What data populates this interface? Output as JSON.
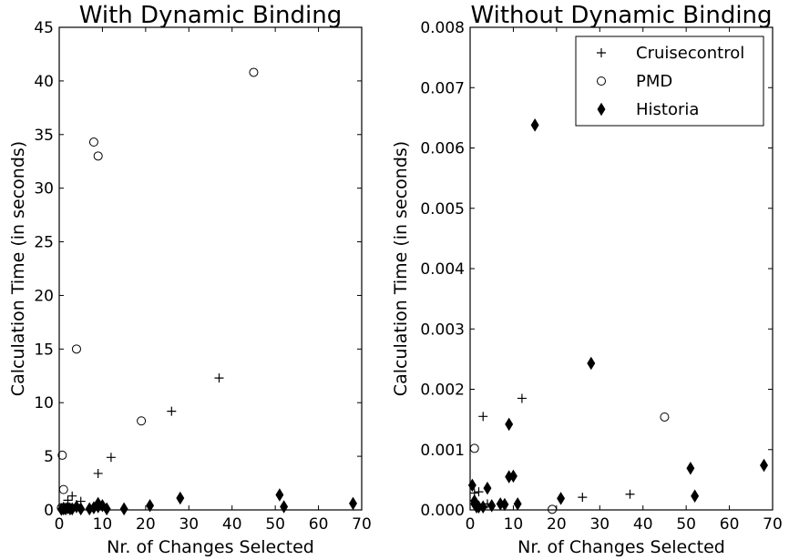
{
  "chart_data": [
    {
      "type": "scatter",
      "title": "With Dynamic Binding",
      "xlabel": "Nr. of Changes Selected",
      "ylabel": "Calculation Time (in seconds)",
      "xlim": [
        0,
        70
      ],
      "ylim": [
        0,
        45
      ],
      "xticks": [
        0,
        10,
        20,
        30,
        40,
        50,
        60,
        70
      ],
      "yticks": [
        0,
        5,
        10,
        15,
        20,
        25,
        30,
        35,
        40,
        45
      ],
      "xtick_labels": [
        "0",
        "10",
        "20",
        "30",
        "40",
        "50",
        "60",
        "70"
      ],
      "ytick_labels": [
        "0",
        "5",
        "10",
        "15",
        "20",
        "25",
        "30",
        "35",
        "40",
        "45"
      ],
      "grid": false,
      "series": [
        {
          "name": "Cruisecontrol",
          "marker": "plus",
          "x": [
            1,
            2,
            3,
            4,
            5,
            9,
            12,
            26,
            37
          ],
          "y": [
            0.3,
            0.9,
            1.3,
            0.5,
            0.8,
            3.4,
            4.9,
            9.2,
            12.3
          ]
        },
        {
          "name": "PMD",
          "marker": "circle",
          "x": [
            0.5,
            0.7,
            1,
            4,
            8,
            9,
            19,
            45
          ],
          "y": [
            0.2,
            5.1,
            1.9,
            15.0,
            34.3,
            33.0,
            8.3,
            40.8
          ]
        },
        {
          "name": "Historia",
          "marker": "diamond",
          "x": [
            0.5,
            1,
            1,
            1.5,
            2,
            2.5,
            3,
            4,
            5,
            7,
            8,
            9,
            9,
            10,
            11,
            15,
            21,
            28,
            51,
            52,
            68
          ],
          "y": [
            0.05,
            0.1,
            0.15,
            0.1,
            0.2,
            0.1,
            0.1,
            0.3,
            0.1,
            0.1,
            0.2,
            0.3,
            0.6,
            0.4,
            0.1,
            0.1,
            0.4,
            1.1,
            1.4,
            0.3,
            0.6
          ]
        }
      ]
    },
    {
      "type": "scatter",
      "title": "Without Dynamic Binding",
      "xlabel": "Nr. of Changes Selected",
      "ylabel": "Calculation Time (in seconds)",
      "xlim": [
        0,
        70
      ],
      "ylim": [
        0,
        0.008
      ],
      "xticks": [
        0,
        10,
        20,
        30,
        40,
        50,
        60,
        70
      ],
      "yticks": [
        0,
        0.001,
        0.002,
        0.003,
        0.004,
        0.005,
        0.006,
        0.007,
        0.008
      ],
      "xtick_labels": [
        "0",
        "10",
        "20",
        "30",
        "40",
        "50",
        "60",
        "70"
      ],
      "ytick_labels": [
        "0.000",
        "0.001",
        "0.002",
        "0.003",
        "0.004",
        "0.005",
        "0.006",
        "0.007",
        "0.008"
      ],
      "grid": false,
      "legend": {
        "position": "top-right",
        "entries": [
          "Cruisecontrol",
          "PMD",
          "Historia"
        ]
      },
      "series": [
        {
          "name": "Cruisecontrol",
          "marker": "plus",
          "x": [
            1,
            2,
            3,
            4,
            12,
            26,
            37
          ],
          "y": [
            0.00028,
            0.0003,
            0.00155,
            0.0001,
            0.00185,
            0.00021,
            0.00026
          ]
        },
        {
          "name": "PMD",
          "marker": "circle",
          "x": [
            1,
            19,
            45
          ],
          "y": [
            0.00102,
            1e-05,
            0.00154
          ]
        },
        {
          "name": "Historia",
          "marker": "diamond",
          "x": [
            0.5,
            1,
            1,
            1.5,
            2,
            3,
            4,
            5,
            7,
            8,
            9,
            9,
            10,
            11,
            15,
            21,
            28,
            51,
            52,
            68
          ],
          "y": [
            0.00041,
            0.00015,
            0.0001,
            5e-05,
            5e-05,
            5e-05,
            0.00036,
            7e-05,
            0.0001,
            9e-05,
            0.00142,
            0.00055,
            0.00056,
            0.0001,
            0.00638,
            0.00019,
            0.00243,
            0.00069,
            0.00023,
            0.00074
          ]
        }
      ]
    }
  ]
}
